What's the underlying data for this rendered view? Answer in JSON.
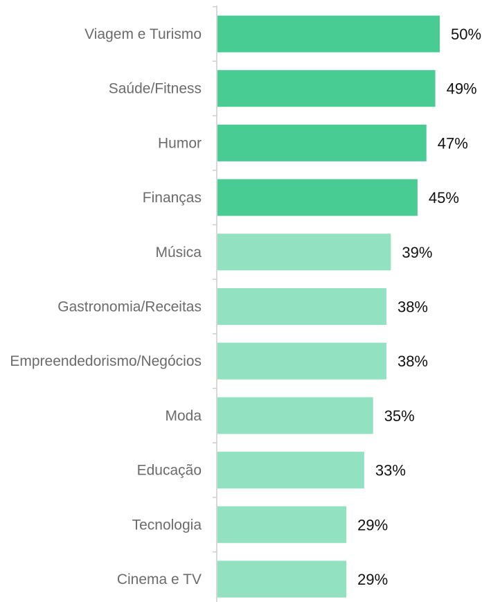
{
  "chart_data": {
    "type": "bar",
    "orientation": "horizontal",
    "categories": [
      "Viagem e Turismo",
      "Saúde/Fitness",
      "Humor",
      "Finanças",
      "Música",
      "Gastronomia/Receitas",
      "Empreendedorismo/Negócios",
      "Moda",
      "Educação",
      "Tecnologia",
      "Cinema e TV"
    ],
    "values": [
      50,
      49,
      47,
      45,
      39,
      38,
      38,
      35,
      33,
      29,
      29
    ],
    "value_labels": [
      "50%",
      "49%",
      "47%",
      "45%",
      "39%",
      "38%",
      "38%",
      "35%",
      "33%",
      "29%",
      "29%"
    ],
    "highlight_count": 4,
    "colors": {
      "highlight": "#48cc93",
      "normal": "#92e1c0",
      "axis": "#cccccc"
    },
    "xlim": [
      0,
      50
    ],
    "grid": false,
    "legend": "none"
  }
}
